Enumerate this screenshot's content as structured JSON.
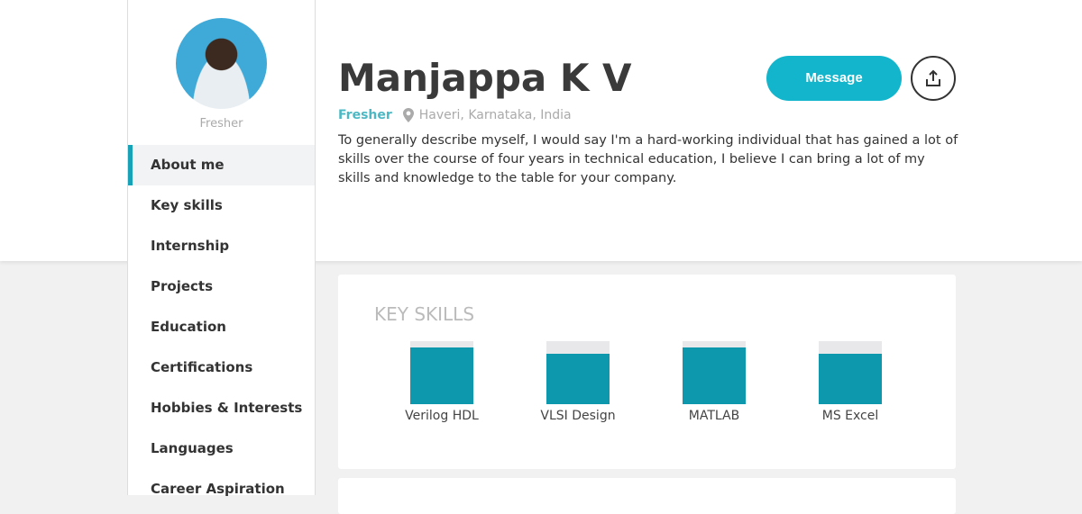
{
  "profile": {
    "name": "Manjappa K V",
    "status": "Fresher",
    "location": "Haveri, Karnataka, India",
    "bio": "To generally describe myself, I would say I'm a hard-working individual that has gained a lot of skills over the course of four years in technical education, I believe I can bring a lot of my skills and knowledge to the table for your company."
  },
  "actions": {
    "message_label": "Message",
    "share_icon": "share-icon"
  },
  "sidebar": {
    "subtitle": "Fresher",
    "items": [
      {
        "label": "About me",
        "active": true
      },
      {
        "label": "Key skills"
      },
      {
        "label": "Internship"
      },
      {
        "label": "Projects"
      },
      {
        "label": "Education"
      },
      {
        "label": "Certifications"
      },
      {
        "label": "Hobbies & Interests"
      },
      {
        "label": "Languages"
      },
      {
        "label": "Career Aspiration"
      }
    ]
  },
  "key_skills": {
    "title": "KEY SKILLS",
    "skills": [
      {
        "name": "Verilog HDL",
        "level": 90
      },
      {
        "name": "VLSI Design",
        "level": 80
      },
      {
        "name": "MATLAB",
        "level": 90
      },
      {
        "name": "MS Excel",
        "level": 80
      }
    ]
  },
  "colors": {
    "accent": "#12b5cb",
    "bar": "#0e98ad"
  }
}
